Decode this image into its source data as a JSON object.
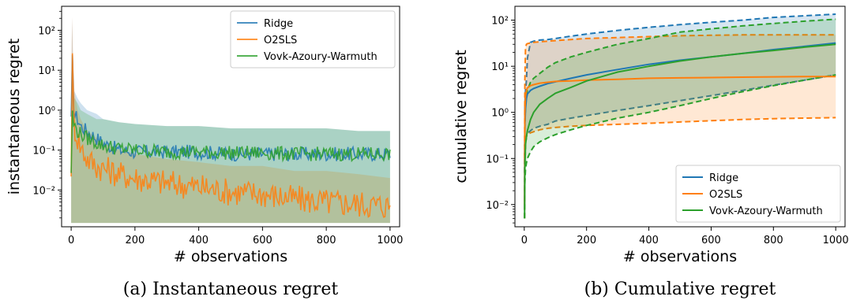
{
  "colors": {
    "ridge": "#1f77b4",
    "o2sls": "#ff7f0e",
    "vaw": "#2ca02c"
  },
  "chart_data": [
    {
      "type": "line",
      "caption": "(a) Instantaneous regret",
      "xlabel": "# observations",
      "ylabel": "instantaneous regret",
      "xlim": [
        -30,
        1030
      ],
      "ylim": [
        0.0012,
        400
      ],
      "yscale": "log",
      "x_ticks": [
        0,
        200,
        400,
        600,
        800,
        1000
      ],
      "x_tick_labels": [
        "0",
        "200",
        "400",
        "600",
        "800",
        "1000"
      ],
      "y_ticks": [
        0.01,
        0.1,
        1,
        10,
        100
      ],
      "y_tick_labels": [
        "10⁻²",
        "10⁻¹",
        "10⁰",
        "10¹",
        "10²"
      ],
      "legend": {
        "position": "top-right",
        "entries": [
          "Ridge",
          "O2SLS",
          "Vovk-Azoury-Warmuth"
        ]
      },
      "series": [
        {
          "name": "Ridge",
          "color_key": "ridge",
          "x": [
            0,
            3,
            6,
            10,
            20,
            30,
            50,
            80,
            100,
            150,
            200,
            300,
            400,
            500,
            600,
            700,
            800,
            900,
            1000
          ],
          "values": [
            0.5,
            50,
            2,
            0.8,
            0.6,
            0.4,
            0.3,
            0.2,
            0.15,
            0.1,
            0.09,
            0.09,
            0.09,
            0.08,
            0.08,
            0.08,
            0.08,
            0.08,
            0.08
          ],
          "band_upper": [
            3,
            200,
            20,
            3,
            2,
            1.5,
            1,
            0.8,
            0.6,
            0.5,
            0.45,
            0.4,
            0.4,
            0.35,
            0.35,
            0.35,
            0.35,
            0.3,
            0.3
          ],
          "band_lower": [
            0.0015,
            0.0015,
            0.0015,
            0.0015,
            0.0015,
            0.0015,
            0.0015,
            0.0015,
            0.0015,
            0.0015,
            0.0015,
            0.0015,
            0.0015,
            0.0015,
            0.0015,
            0.0015,
            0.0015,
            0.0015,
            0.0015
          ]
        },
        {
          "name": "O2SLS",
          "color_key": "o2sls",
          "x": [
            0,
            3,
            6,
            10,
            20,
            30,
            50,
            80,
            100,
            150,
            200,
            300,
            400,
            500,
            600,
            700,
            800,
            900,
            1000
          ],
          "values": [
            0.04,
            50,
            1.5,
            0.4,
            0.2,
            0.12,
            0.06,
            0.04,
            0.035,
            0.025,
            0.02,
            0.015,
            0.012,
            0.009,
            0.008,
            0.006,
            0.005,
            0.0045,
            0.004
          ],
          "band_upper": [
            5,
            220,
            20,
            3,
            1,
            0.6,
            0.3,
            0.2,
            0.15,
            0.1,
            0.08,
            0.06,
            0.05,
            0.04,
            0.04,
            0.03,
            0.03,
            0.025,
            0.02
          ],
          "band_lower": [
            0.0015,
            0.0015,
            0.0015,
            0.0015,
            0.0015,
            0.0015,
            0.0015,
            0.0015,
            0.0015,
            0.0015,
            0.0015,
            0.0015,
            0.0015,
            0.0015,
            0.0015,
            0.0015,
            0.0015,
            0.0015,
            0.0015
          ]
        },
        {
          "name": "Vovk-Azoury-Warmuth",
          "color_key": "vaw",
          "x": [
            0,
            3,
            6,
            10,
            20,
            30,
            50,
            80,
            100,
            150,
            200,
            300,
            400,
            500,
            600,
            700,
            800,
            900,
            1000
          ],
          "values": [
            0.03,
            1.0,
            0.5,
            0.4,
            0.3,
            0.25,
            0.2,
            0.15,
            0.13,
            0.11,
            0.1,
            0.09,
            0.09,
            0.085,
            0.085,
            0.08,
            0.08,
            0.08,
            0.08
          ],
          "band_upper": [
            2,
            5,
            3,
            2,
            1.5,
            1,
            0.8,
            0.6,
            0.6,
            0.5,
            0.45,
            0.4,
            0.4,
            0.35,
            0.35,
            0.35,
            0.35,
            0.3,
            0.3
          ],
          "band_lower": [
            0.0015,
            0.0015,
            0.0015,
            0.0015,
            0.0015,
            0.0015,
            0.0015,
            0.0015,
            0.0015,
            0.0015,
            0.0015,
            0.0015,
            0.0015,
            0.0015,
            0.0015,
            0.0015,
            0.0015,
            0.0015,
            0.0015
          ]
        }
      ]
    },
    {
      "type": "line",
      "caption": "(b) Cumulative regret",
      "xlabel": "# observations",
      "ylabel": "cumulative regret",
      "xlim": [
        -30,
        1030
      ],
      "ylim": [
        0.0033,
        200
      ],
      "yscale": "log",
      "x_ticks": [
        0,
        200,
        400,
        600,
        800,
        1000
      ],
      "x_tick_labels": [
        "0",
        "200",
        "400",
        "600",
        "800",
        "1000"
      ],
      "y_ticks": [
        0.01,
        0.1,
        1,
        10,
        100
      ],
      "y_tick_labels": [
        "10⁻²",
        "10⁻¹",
        "10⁰",
        "10¹",
        "10²"
      ],
      "legend": {
        "position": "bottom-right",
        "entries": [
          "Ridge",
          "O2SLS",
          "Vovk-Azoury-Warmuth"
        ]
      },
      "series": [
        {
          "name": "Ridge",
          "color_key": "ridge",
          "x": [
            1,
            2,
            4,
            7,
            10,
            20,
            30,
            50,
            75,
            100,
            150,
            200,
            300,
            400,
            500,
            600,
            700,
            800,
            900,
            1000
          ],
          "values": [
            0.01,
            0.5,
            1.2,
            2.0,
            2.5,
            3.0,
            3.3,
            3.7,
            4.2,
            4.6,
            5.5,
            6.5,
            8.5,
            11,
            13.5,
            16,
            19,
            23,
            27,
            32
          ],
          "band_upper": [
            0.05,
            1.5,
            3,
            5,
            15,
            33,
            35,
            37,
            38,
            40,
            45,
            50,
            60,
            70,
            80,
            90,
            100,
            115,
            125,
            135
          ],
          "band_lower": [
            0.005,
            0.1,
            0.2,
            0.3,
            0.35,
            0.4,
            0.45,
            0.5,
            0.55,
            0.65,
            0.75,
            0.85,
            1.1,
            1.4,
            1.8,
            2.3,
            3.0,
            3.9,
            5.0,
            6.5
          ]
        },
        {
          "name": "O2SLS",
          "color_key": "o2sls",
          "x": [
            1,
            2,
            4,
            7,
            10,
            20,
            30,
            50,
            75,
            100,
            150,
            200,
            300,
            400,
            500,
            600,
            700,
            800,
            900,
            1000
          ],
          "values": [
            0.01,
            1.0,
            2.3,
            3.0,
            3.4,
            3.8,
            4.0,
            4.3,
            4.5,
            4.7,
            4.8,
            5.0,
            5.2,
            5.5,
            5.6,
            5.7,
            5.8,
            5.9,
            6.0,
            6.0
          ],
          "band_upper": [
            0.1,
            5,
            25,
            30,
            31,
            32,
            33,
            34,
            35,
            36,
            38,
            40,
            42,
            44,
            46,
            47,
            48,
            48,
            48,
            48
          ],
          "band_lower": [
            0.005,
            0.05,
            0.2,
            0.3,
            0.33,
            0.36,
            0.38,
            0.42,
            0.45,
            0.47,
            0.5,
            0.52,
            0.55,
            0.58,
            0.62,
            0.66,
            0.7,
            0.73,
            0.75,
            0.77
          ]
        },
        {
          "name": "Vovk-Azoury-Warmuth",
          "color_key": "vaw",
          "x": [
            1,
            2,
            4,
            7,
            10,
            20,
            30,
            50,
            75,
            100,
            150,
            200,
            300,
            400,
            500,
            600,
            700,
            800,
            900,
            1000
          ],
          "values": [
            0.005,
            0.06,
            0.2,
            0.3,
            0.4,
            0.7,
            1.0,
            1.5,
            2.0,
            2.6,
            3.5,
            4.8,
            7.5,
            10,
            13,
            16,
            19,
            22,
            26,
            30
          ],
          "band_upper": [
            0.02,
            0.5,
            1.5,
            2.5,
            3.0,
            4.5,
            5.5,
            7.0,
            9.5,
            12,
            16,
            20,
            30,
            40,
            55,
            65,
            75,
            85,
            95,
            105
          ],
          "band_lower": [
            0.005,
            0.03,
            0.06,
            0.08,
            0.1,
            0.14,
            0.18,
            0.23,
            0.28,
            0.33,
            0.42,
            0.52,
            0.75,
            1.0,
            1.4,
            2.0,
            2.8,
            3.8,
            5.0,
            6.5
          ]
        }
      ]
    }
  ]
}
